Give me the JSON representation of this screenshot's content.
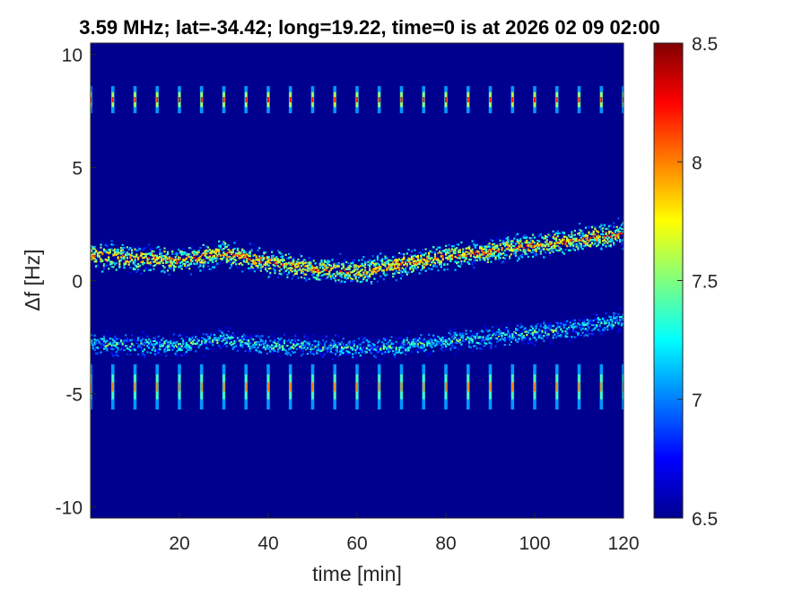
{
  "chart_data": {
    "type": "heatmap",
    "title": "3.59 MHz;  lat=-34.42; long=19.22, time=0 is at 2026 02 09 02:00",
    "xlabel": "time [min]",
    "ylabel": "Δf [Hz]",
    "xlim": [
      0,
      120
    ],
    "ylim": [
      -10.5,
      10.5
    ],
    "x_ticks": [
      20,
      40,
      60,
      80,
      100,
      120
    ],
    "y_ticks": [
      10,
      5,
      0,
      -5,
      -10
    ],
    "colorbar": {
      "range": [
        6.5,
        8.5
      ],
      "ticks": [
        6.5,
        7,
        7.5,
        8,
        8.5
      ],
      "colormap": "jet",
      "background_color": "#00008f"
    },
    "grid": false,
    "features": [
      {
        "label": "",
        "kind": "band",
        "x": [
          0,
          10,
          20,
          30,
          40,
          50,
          60,
          70,
          80,
          90,
          100,
          110,
          120
        ],
        "y": [
          1.1,
          1.0,
          0.9,
          1.2,
          0.8,
          0.5,
          0.4,
          0.7,
          1.1,
          1.3,
          1.6,
          1.8,
          2.1
        ],
        "intensity": 8.0
      },
      {
        "label": "",
        "kind": "band",
        "x": [
          0,
          10,
          20,
          30,
          40,
          50,
          60,
          70,
          80,
          90,
          100,
          110,
          120
        ],
        "y": [
          -2.8,
          -2.85,
          -2.85,
          -2.6,
          -2.9,
          -2.9,
          -3.0,
          -2.9,
          -2.7,
          -2.5,
          -2.3,
          -2.1,
          -1.7
        ],
        "intensity": 7.4
      },
      {
        "label": "",
        "kind": "periodic_ticks",
        "y_center": 8.0,
        "y_halfwidth": 0.6,
        "period_min": 5,
        "first_min": 0,
        "intensity": 8.0
      },
      {
        "label": "",
        "kind": "periodic_ticks",
        "y_center": -4.7,
        "y_halfwidth": 1.0,
        "period_min": 5,
        "first_min": 0,
        "intensity": 7.8
      }
    ]
  }
}
